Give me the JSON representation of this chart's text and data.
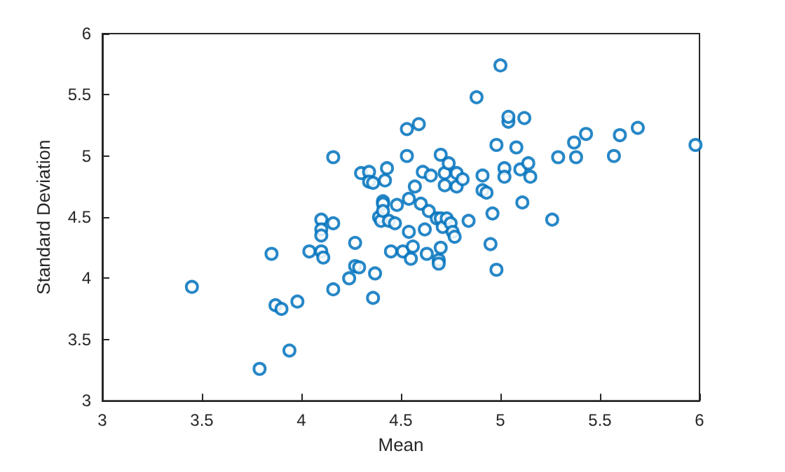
{
  "chart_data": {
    "type": "scatter",
    "xlabel": "Mean",
    "ylabel": "Standard Deviation",
    "xlim": [
      3,
      6
    ],
    "ylim": [
      3,
      6
    ],
    "xticks": [
      3,
      3.5,
      4,
      4.5,
      5,
      5.5,
      6
    ],
    "yticks": [
      3,
      3.5,
      4,
      4.5,
      5,
      5.5,
      6
    ],
    "grid": false,
    "marker": "circle",
    "series": [
      {
        "color": "#0072bd",
        "x": [
          3.45,
          3.79,
          3.85,
          3.87,
          3.9,
          3.94,
          3.98,
          4.04,
          4.1,
          4.1,
          4.1,
          4.1,
          4.11,
          4.16,
          4.16,
          4.16,
          4.24,
          4.27,
          4.27,
          4.29,
          4.3,
          4.34,
          4.34,
          4.36,
          4.36,
          4.37,
          4.39,
          4.4,
          4.41,
          4.41,
          4.41,
          4.42,
          4.43,
          4.44,
          4.45,
          4.47,
          4.48,
          4.51,
          4.53,
          4.53,
          4.54,
          4.54,
          4.55,
          4.56,
          4.57,
          4.59,
          4.6,
          4.61,
          4.62,
          4.63,
          4.64,
          4.65,
          4.68,
          4.69,
          4.69,
          4.7,
          4.7,
          4.7,
          4.71,
          4.72,
          4.72,
          4.73,
          4.74,
          4.75,
          4.76,
          4.77,
          4.78,
          4.78,
          4.81,
          4.84,
          4.88,
          4.91,
          4.91,
          4.93,
          4.95,
          4.96,
          4.98,
          4.98,
          5.0,
          5.02,
          5.02,
          5.04,
          5.04,
          5.08,
          5.1,
          5.11,
          5.12,
          5.14,
          5.15,
          5.26,
          5.29,
          5.37,
          5.38,
          5.43,
          5.57,
          5.6,
          5.69,
          5.98
        ],
        "values": [
          3.93,
          3.26,
          4.2,
          3.78,
          3.75,
          3.41,
          3.81,
          4.22,
          4.48,
          4.4,
          4.35,
          4.22,
          4.17,
          4.99,
          4.45,
          3.91,
          4.0,
          4.29,
          4.1,
          4.09,
          4.86,
          4.87,
          4.79,
          4.78,
          3.84,
          4.04,
          4.5,
          4.47,
          4.63,
          4.61,
          4.55,
          4.8,
          4.9,
          4.47,
          4.22,
          4.45,
          4.6,
          4.22,
          5.0,
          5.22,
          4.65,
          4.38,
          4.16,
          4.26,
          4.75,
          5.26,
          4.61,
          4.87,
          4.4,
          4.2,
          4.55,
          4.84,
          4.49,
          4.15,
          4.12,
          4.25,
          5.01,
          4.49,
          4.42,
          4.86,
          4.76,
          4.49,
          4.94,
          4.45,
          4.38,
          4.34,
          4.75,
          4.86,
          4.81,
          4.47,
          5.48,
          4.72,
          4.84,
          4.7,
          4.28,
          4.53,
          4.07,
          5.09,
          5.74,
          4.9,
          4.83,
          5.28,
          5.32,
          5.07,
          4.89,
          4.62,
          5.31,
          4.94,
          4.83,
          4.48,
          4.99,
          5.11,
          4.99,
          5.18,
          5.0,
          5.17,
          5.23,
          5.09
        ]
      }
    ]
  }
}
